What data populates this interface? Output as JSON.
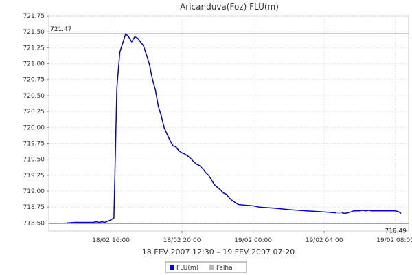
{
  "chart_data": {
    "type": "line",
    "title": "Aricanduva(Foz) FLU(m)",
    "xlabel": "18 FEV 2007 12:30 – 19 FEV 2007 07:20",
    "ylabel": "",
    "ylim": [
      718.375,
      721.75
    ],
    "xlim": [
      "2007-02-18 12:30",
      "2007-02-19 08:45"
    ],
    "grid": true,
    "y_ticks": [
      "718.50",
      "718.75",
      "719.00",
      "719.25",
      "719.50",
      "719.75",
      "720.00",
      "720.25",
      "720.50",
      "720.75",
      "721.00",
      "721.25",
      "721.50",
      "721.75"
    ],
    "x_ticks": [
      {
        "t": "2007-02-18 16:00",
        "label": "18/02 16:00"
      },
      {
        "t": "2007-02-18 20:00",
        "label": "18/02 20:00"
      },
      {
        "t": "2007-02-19 00:00",
        "label": "19/02 00:00"
      },
      {
        "t": "2007-02-19 04:00",
        "label": "19/02 04:00"
      },
      {
        "t": "2007-02-19 08:00",
        "label": "19/02 08:00"
      }
    ],
    "reference_lines": [
      {
        "label": "721.47",
        "value": 721.47,
        "position": "left"
      },
      {
        "label": "718.49",
        "value": 718.49,
        "position": "right"
      }
    ],
    "legend": {
      "placement": "bottom"
    },
    "series": [
      {
        "name": "FLU(m)",
        "color": "#0000dd",
        "points": [
          [
            "2007-02-18 13:30",
            718.5
          ],
          [
            "2007-02-18 14:00",
            718.51
          ],
          [
            "2007-02-18 14:20",
            718.51
          ],
          [
            "2007-02-18 14:40",
            718.51
          ],
          [
            "2007-02-18 15:00",
            718.51
          ],
          [
            "2007-02-18 15:10",
            718.52
          ],
          [
            "2007-02-18 15:20",
            718.51
          ],
          [
            "2007-02-18 15:30",
            718.52
          ],
          [
            "2007-02-18 15:40",
            718.51
          ],
          [
            "2007-02-18 15:50",
            718.53
          ],
          [
            "2007-02-18 16:00",
            718.55
          ],
          [
            "2007-02-18 16:10",
            718.58
          ],
          [
            "2007-02-18 16:20",
            720.62
          ],
          [
            "2007-02-18 16:30",
            721.18
          ],
          [
            "2007-02-18 16:50",
            721.47
          ],
          [
            "2007-02-18 17:00",
            721.42
          ],
          [
            "2007-02-18 17:10",
            721.34
          ],
          [
            "2007-02-18 17:20",
            721.42
          ],
          [
            "2007-02-18 17:30",
            721.4
          ],
          [
            "2007-02-18 17:40",
            721.34
          ],
          [
            "2007-02-18 17:50",
            721.28
          ],
          [
            "2007-02-18 18:00",
            721.14
          ],
          [
            "2007-02-18 18:10",
            720.99
          ],
          [
            "2007-02-18 18:20",
            720.76
          ],
          [
            "2007-02-18 18:30",
            720.59
          ],
          [
            "2007-02-18 18:40",
            720.33
          ],
          [
            "2007-02-18 18:50",
            720.18
          ],
          [
            "2007-02-18 19:00",
            719.99
          ],
          [
            "2007-02-18 19:10",
            719.89
          ],
          [
            "2007-02-18 19:20",
            719.79
          ],
          [
            "2007-02-18 19:30",
            719.71
          ],
          [
            "2007-02-18 19:40",
            719.69
          ],
          [
            "2007-02-18 19:50",
            719.63
          ],
          [
            "2007-02-18 20:00",
            719.6
          ],
          [
            "2007-02-18 20:10",
            719.58
          ],
          [
            "2007-02-18 20:20",
            719.55
          ],
          [
            "2007-02-18 20:30",
            719.51
          ],
          [
            "2007-02-18 20:40",
            719.46
          ],
          [
            "2007-02-18 20:50",
            719.42
          ],
          [
            "2007-02-18 21:00",
            719.4
          ],
          [
            "2007-02-18 21:10",
            719.35
          ],
          [
            "2007-02-18 21:20",
            719.29
          ],
          [
            "2007-02-18 21:30",
            719.25
          ],
          [
            "2007-02-18 21:40",
            719.17
          ],
          [
            "2007-02-18 21:50",
            719.1
          ],
          [
            "2007-02-18 22:00",
            719.06
          ],
          [
            "2007-02-18 22:10",
            719.02
          ],
          [
            "2007-02-18 22:20",
            718.97
          ],
          [
            "2007-02-18 22:30",
            718.95
          ],
          [
            "2007-02-18 22:40",
            718.89
          ],
          [
            "2007-02-18 22:50",
            718.85
          ],
          [
            "2007-02-18 23:00",
            718.82
          ],
          [
            "2007-02-18 23:10",
            718.79
          ],
          [
            "2007-02-18 23:30",
            718.78
          ],
          [
            "2007-02-19 00:00",
            718.77
          ],
          [
            "2007-02-19 00:20",
            718.75
          ],
          [
            "2007-02-19 00:50",
            718.74
          ],
          [
            "2007-02-19 01:20",
            718.73
          ],
          [
            "2007-02-19 01:40",
            718.72
          ],
          [
            "2007-02-19 02:00",
            718.71
          ],
          [
            "2007-02-19 02:30",
            718.7
          ],
          [
            "2007-02-19 03:00",
            718.69
          ],
          [
            "2007-02-19 03:40",
            718.68
          ],
          [
            "2007-02-19 04:10",
            718.67
          ],
          [
            "2007-02-19 04:40",
            718.66
          ],
          [
            "2007-02-19 05:00",
            718.66
          ],
          [
            "2007-02-19 05:10",
            718.65
          ],
          [
            "2007-02-19 05:20",
            718.66
          ],
          [
            "2007-02-19 05:40",
            718.69
          ],
          [
            "2007-02-19 06:00",
            718.69
          ],
          [
            "2007-02-19 06:10",
            718.7
          ],
          [
            "2007-02-19 06:20",
            718.69
          ],
          [
            "2007-02-19 06:30",
            718.7
          ],
          [
            "2007-02-19 06:40",
            718.69
          ],
          [
            "2007-02-19 07:00",
            718.69
          ],
          [
            "2007-02-19 07:20",
            718.69
          ],
          [
            "2007-02-19 07:40",
            718.69
          ],
          [
            "2007-02-19 08:00",
            718.69
          ],
          [
            "2007-02-19 08:10",
            718.68
          ],
          [
            "2007-02-19 08:20",
            718.65
          ]
        ]
      },
      {
        "name": "Falha",
        "color": "#b8b8b8",
        "points": [
          [
            "2007-02-18 13:20",
            718.5
          ],
          [
            "2007-02-18 13:30",
            718.5
          ],
          [
            "2007-02-19 04:40",
            718.66
          ],
          [
            "2007-02-19 05:00",
            718.66
          ]
        ],
        "segments": [
          [
            0,
            1
          ],
          [
            2,
            3
          ]
        ]
      }
    ]
  }
}
